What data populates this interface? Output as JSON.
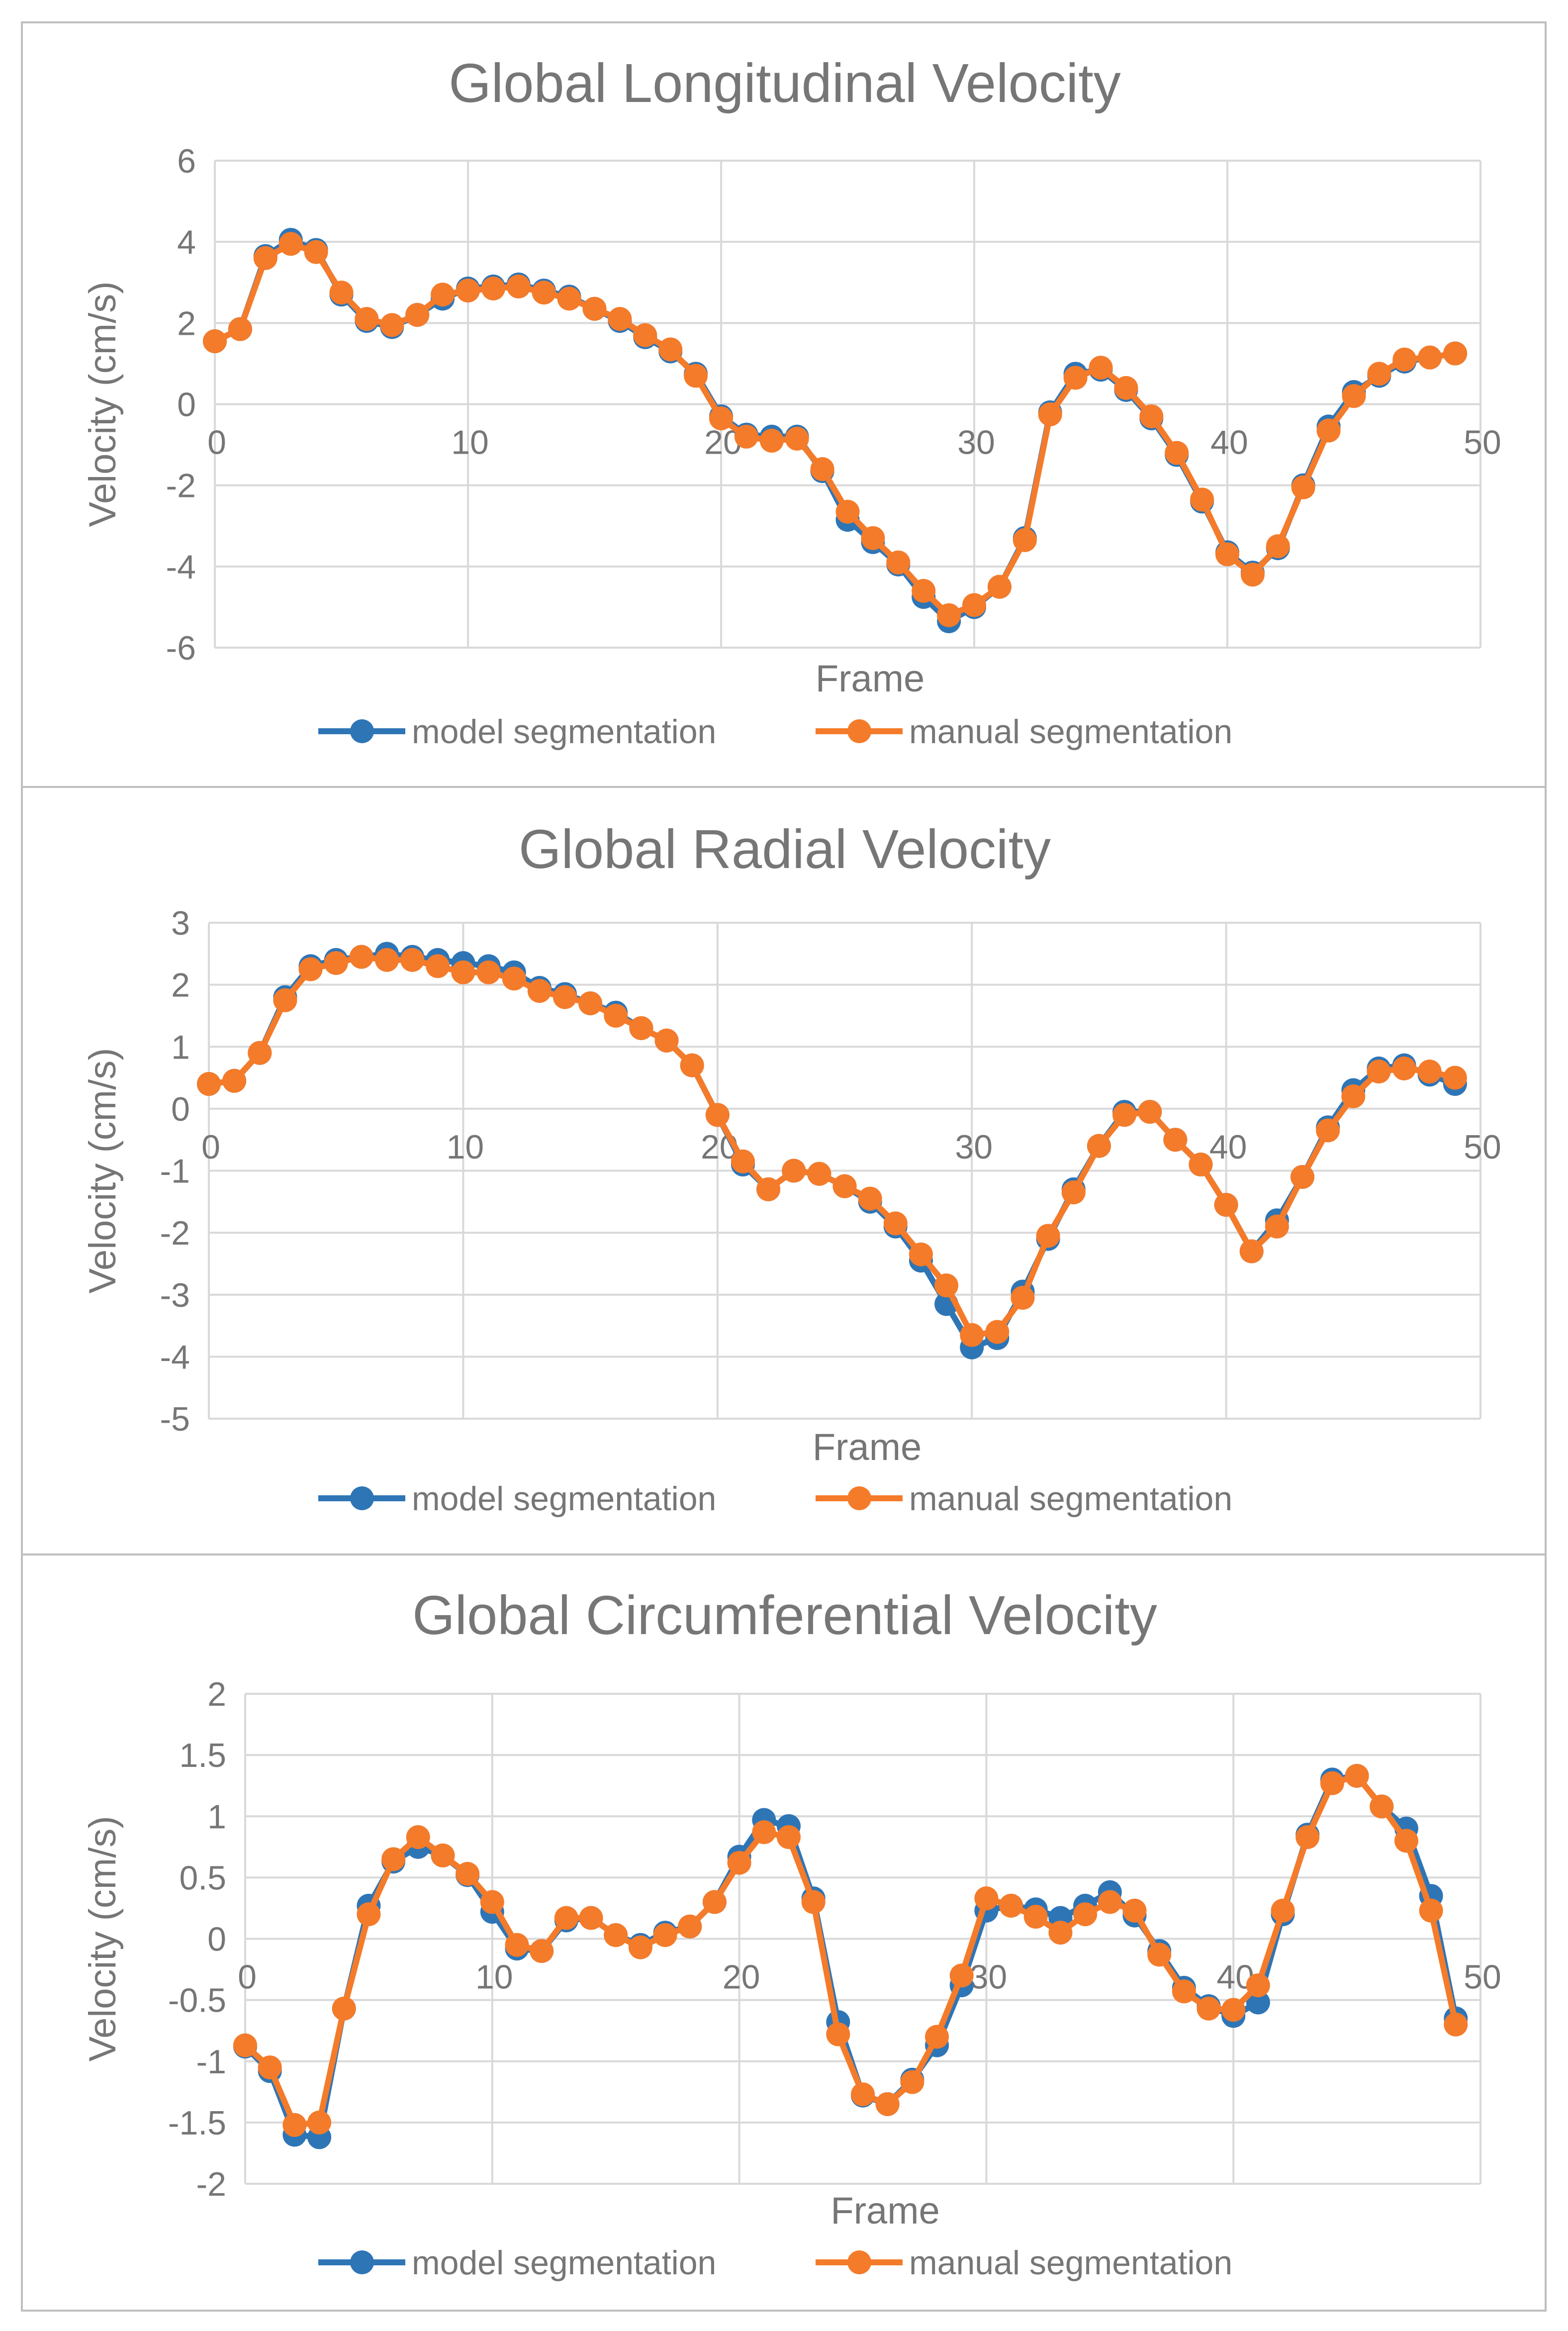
{
  "colors": {
    "model": "#2E75B6",
    "manual": "#F47B2A",
    "grid": "#D9D9D9",
    "text": "#767676",
    "title": "#767676",
    "border": "#BFBFBF"
  },
  "chart_data": [
    {
      "type": "line",
      "title": "Global Longitudinal Velocity",
      "xlabel": "Frame",
      "ylabel": "Velocity (cm/s)",
      "xlim": [
        0,
        50
      ],
      "ylim": [
        -6,
        6
      ],
      "xticks": [
        0,
        10,
        20,
        30,
        40,
        50
      ],
      "xtick_labels": [
        "0",
        "10",
        "20",
        "30",
        "40",
        "50"
      ],
      "yticks": [
        -6,
        -4,
        -2,
        0,
        2,
        4,
        6
      ],
      "ytick_labels": [
        "-6",
        "-4",
        "-2",
        "0",
        "2",
        "4",
        "6"
      ],
      "legend": "bottom",
      "x": [
        0,
        1,
        2,
        3,
        4,
        5,
        6,
        7,
        8,
        9,
        10,
        11,
        12,
        13,
        14,
        15,
        16,
        17,
        18,
        19,
        20,
        21,
        22,
        23,
        24,
        25,
        26,
        27,
        28,
        29,
        30,
        31,
        32,
        33,
        34,
        35,
        36,
        37,
        38,
        39,
        40,
        41,
        42,
        43,
        44,
        45,
        46,
        47,
        48,
        49
      ],
      "series": [
        {
          "name": "model segmentation",
          "values": [
            1.55,
            1.85,
            3.65,
            4.05,
            3.8,
            2.7,
            2.05,
            1.9,
            2.2,
            2.6,
            2.85,
            2.9,
            2.95,
            2.8,
            2.65,
            2.35,
            2.05,
            1.65,
            1.3,
            0.75,
            -0.3,
            -0.75,
            -0.8,
            -0.8,
            -1.65,
            -2.85,
            -3.4,
            -3.95,
            -4.75,
            -5.35,
            -5.0,
            -4.5,
            -3.3,
            -0.2,
            0.75,
            0.85,
            0.35,
            -0.35,
            -1.25,
            -2.4,
            -3.65,
            -4.15,
            -3.55,
            -2.0,
            -0.55,
            0.3,
            0.7,
            1.05,
            1.15,
            1.25
          ]
        },
        {
          "name": "manual segmentation",
          "values": [
            1.55,
            1.85,
            3.6,
            3.95,
            3.75,
            2.75,
            2.1,
            1.95,
            2.2,
            2.7,
            2.8,
            2.85,
            2.9,
            2.75,
            2.6,
            2.35,
            2.1,
            1.7,
            1.35,
            0.7,
            -0.35,
            -0.8,
            -0.9,
            -0.85,
            -1.6,
            -2.65,
            -3.3,
            -3.9,
            -4.6,
            -5.2,
            -4.95,
            -4.5,
            -3.35,
            -0.25,
            0.65,
            0.9,
            0.4,
            -0.3,
            -1.2,
            -2.35,
            -3.7,
            -4.2,
            -3.5,
            -2.05,
            -0.65,
            0.2,
            0.75,
            1.1,
            1.15,
            1.25
          ]
        }
      ]
    },
    {
      "type": "line",
      "title": "Global Radial Velocity",
      "xlabel": "Frame",
      "ylabel": "Velocity (cm/s)",
      "xlim": [
        0,
        50
      ],
      "ylim": [
        -5,
        3
      ],
      "xticks": [
        0,
        10,
        20,
        30,
        40,
        50
      ],
      "xtick_labels": [
        "0",
        "10",
        "20",
        "30",
        "40",
        "50"
      ],
      "yticks": [
        -5,
        -4,
        -3,
        -2,
        -1,
        0,
        1,
        2,
        3
      ],
      "ytick_labels": [
        "-5",
        "-4",
        "-3",
        "-2",
        "-1",
        "0",
        "1",
        "2",
        "3"
      ],
      "legend": "bottom",
      "x": [
        0,
        1,
        2,
        3,
        4,
        5,
        6,
        7,
        8,
        9,
        10,
        11,
        12,
        13,
        14,
        15,
        16,
        17,
        18,
        19,
        20,
        21,
        22,
        23,
        24,
        25,
        26,
        27,
        28,
        29,
        30,
        31,
        32,
        33,
        34,
        35,
        36,
        37,
        38,
        39,
        40,
        41,
        42,
        43,
        44,
        45,
        46,
        47,
        48,
        49
      ],
      "series": [
        {
          "name": "model segmentation",
          "values": [
            0.4,
            0.45,
            0.9,
            1.8,
            2.3,
            2.4,
            2.45,
            2.5,
            2.45,
            2.4,
            2.35,
            2.3,
            2.2,
            1.95,
            1.85,
            1.7,
            1.55,
            1.3,
            1.1,
            0.7,
            -0.1,
            -0.9,
            -1.3,
            -1.0,
            -1.05,
            -1.25,
            -1.5,
            -1.9,
            -2.45,
            -3.15,
            -3.85,
            -3.7,
            -2.95,
            -2.1,
            -1.3,
            -0.6,
            -0.05,
            -0.05,
            -0.5,
            -0.9,
            -1.55,
            -2.3,
            -1.8,
            -1.1,
            -0.3,
            0.3,
            0.65,
            0.7,
            0.55,
            0.4
          ]
        },
        {
          "name": "manual segmentation",
          "values": [
            0.4,
            0.45,
            0.9,
            1.75,
            2.25,
            2.35,
            2.45,
            2.4,
            2.4,
            2.3,
            2.2,
            2.2,
            2.1,
            1.9,
            1.8,
            1.7,
            1.5,
            1.3,
            1.1,
            0.7,
            -0.1,
            -0.85,
            -1.3,
            -1.0,
            -1.05,
            -1.25,
            -1.45,
            -1.85,
            -2.35,
            -2.85,
            -3.65,
            -3.6,
            -3.05,
            -2.05,
            -1.35,
            -0.6,
            -0.1,
            -0.05,
            -0.5,
            -0.9,
            -1.55,
            -2.3,
            -1.9,
            -1.1,
            -0.35,
            0.2,
            0.6,
            0.65,
            0.6,
            0.5
          ]
        }
      ]
    },
    {
      "type": "line",
      "title": "Global Circumferential Velocity",
      "xlabel": "Frame",
      "ylabel": "Velocity (cm/s)",
      "xlim": [
        0,
        50
      ],
      "ylim": [
        -2,
        2
      ],
      "xticks": [
        0,
        10,
        20,
        30,
        40,
        50
      ],
      "xtick_labels": [
        "0",
        "10",
        "20",
        "30",
        "40",
        "50"
      ],
      "yticks": [
        -2,
        -1.5,
        -1,
        -0.5,
        0,
        0.5,
        1,
        1.5,
        2
      ],
      "ytick_labels": [
        "-2",
        "-1.5",
        "-1",
        "-0.5",
        "0",
        "0.5",
        "1",
        "1.5",
        "2"
      ],
      "legend": "bottom",
      "x": [
        0,
        1,
        2,
        3,
        4,
        5,
        6,
        7,
        8,
        9,
        10,
        11,
        12,
        13,
        14,
        15,
        16,
        17,
        18,
        19,
        20,
        21,
        22,
        23,
        24,
        25,
        26,
        27,
        28,
        29,
        30,
        31,
        32,
        33,
        34,
        35,
        36,
        37,
        38,
        39,
        40,
        41,
        42,
        43,
        44,
        45,
        46,
        47,
        48,
        49
      ],
      "series": [
        {
          "name": "model segmentation",
          "values": [
            -0.88,
            -1.08,
            -1.6,
            -1.62,
            -0.57,
            0.27,
            0.63,
            0.75,
            0.68,
            0.52,
            0.22,
            -0.08,
            -0.1,
            0.15,
            0.17,
            0.03,
            -0.05,
            0.05,
            0.1,
            0.3,
            0.67,
            0.97,
            0.92,
            0.33,
            -0.68,
            -1.28,
            -1.35,
            -1.15,
            -0.87,
            -0.38,
            0.23,
            0.27,
            0.24,
            0.17,
            0.27,
            0.38,
            0.19,
            -0.1,
            -0.4,
            -0.55,
            -0.63,
            -0.52,
            0.2,
            0.85,
            1.3,
            1.33,
            1.08,
            0.9,
            0.35,
            -0.65
          ]
        },
        {
          "name": "manual segmentation",
          "values": [
            -0.87,
            -1.05,
            -1.52,
            -1.5,
            -0.57,
            0.2,
            0.65,
            0.83,
            0.68,
            0.53,
            0.3,
            -0.05,
            -0.1,
            0.17,
            0.17,
            0.03,
            -0.07,
            0.03,
            0.1,
            0.3,
            0.62,
            0.87,
            0.83,
            0.3,
            -0.78,
            -1.27,
            -1.35,
            -1.17,
            -0.8,
            -0.3,
            0.33,
            0.27,
            0.18,
            0.05,
            0.2,
            0.3,
            0.23,
            -0.13,
            -0.43,
            -0.57,
            -0.58,
            -0.38,
            0.23,
            0.83,
            1.27,
            1.33,
            1.08,
            0.8,
            0.23,
            -0.7
          ]
        }
      ]
    }
  ]
}
